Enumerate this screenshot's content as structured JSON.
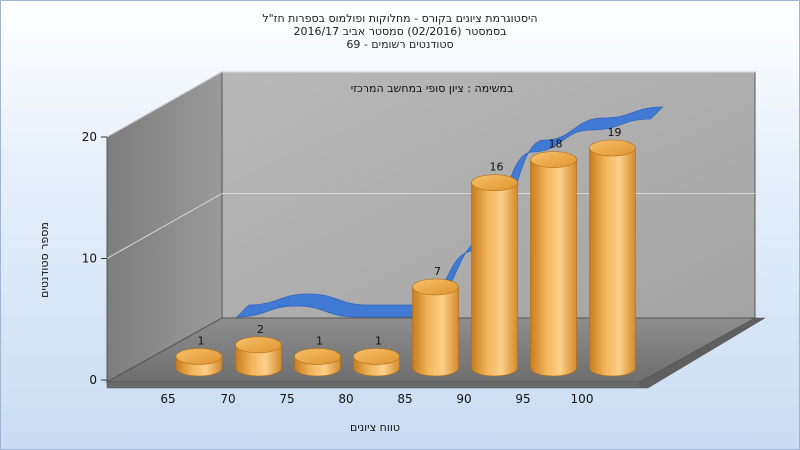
{
  "chart_data": {
    "type": "bar",
    "title_lines": [
      "היסטוגרמת ציונים בקורס - מחלוקות ופולמוס בספרות חז\"ל",
      "בסמסטר  (02/2016)  סמסטר אביב 2016/17",
      "סטודנטים רשומים - 69"
    ],
    "annotation": "במשימה : ציון סופי במחשב המרכזי",
    "categories": [
      "65",
      "70",
      "75",
      "80",
      "85",
      "90",
      "95",
      "100"
    ],
    "values": [
      1,
      2,
      1,
      1,
      7,
      16,
      18,
      19
    ],
    "xlabel": "טווח ציונים",
    "ylabel": "מספר סטודנטים",
    "yticks": [
      "0",
      "10",
      "20"
    ],
    "ylim": [
      0,
      20
    ],
    "bar_color": "#e9a23c",
    "line_color": "#3b78d8",
    "grid": true,
    "legend": "none"
  }
}
